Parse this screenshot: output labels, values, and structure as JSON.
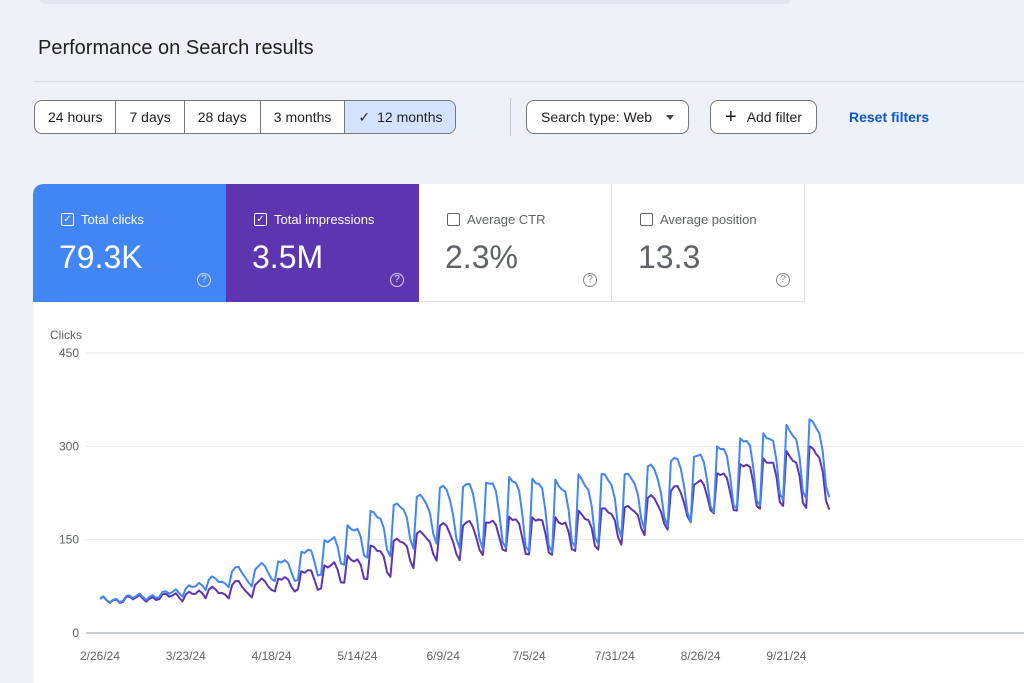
{
  "header": {
    "title": "Performance on Search results"
  },
  "date_range": {
    "options": [
      "24 hours",
      "7 days",
      "28 days",
      "3 months",
      "12 months"
    ],
    "selected": "12 months"
  },
  "filters": {
    "search_type_label": "Search type: Web",
    "add_filter_label": "Add filter",
    "reset_label": "Reset filters"
  },
  "metrics": {
    "clicks": {
      "label": "Total clicks",
      "value": "79.3K",
      "checked": true,
      "color": "#4285f4"
    },
    "impressions": {
      "label": "Total impressions",
      "value": "3.5M",
      "checked": true,
      "color": "#5e35b1"
    },
    "ctr": {
      "label": "Average CTR",
      "value": "2.3%",
      "checked": false
    },
    "position": {
      "label": "Average position",
      "value": "13.3",
      "checked": false
    }
  },
  "chart_data": {
    "type": "line",
    "ylabel": "Clicks",
    "yticks": [
      0,
      150,
      300,
      450
    ],
    "ylim": [
      0,
      450
    ],
    "xticks": [
      "2/26/24",
      "3/23/24",
      "4/18/24",
      "5/14/24",
      "6/9/24",
      "7/5/24",
      "7/31/24",
      "8/26/24",
      "9/21/24"
    ],
    "x_start": "2/26/24",
    "x_days": 221,
    "grid": true,
    "weekly_pattern": true,
    "series": [
      {
        "name": "Total clicks",
        "color": "#4285f4",
        "trend": [
          [
            0,
            52
          ],
          [
            20,
            62
          ],
          [
            40,
            100
          ],
          [
            60,
            125
          ],
          [
            80,
            185
          ],
          [
            100,
            230
          ],
          [
            120,
            250
          ],
          [
            140,
            245
          ],
          [
            160,
            258
          ],
          [
            180,
            290
          ],
          [
            200,
            320
          ],
          [
            221,
            345
          ]
        ],
        "dip": [
          0,
          0,
          25,
          45,
          65,
          85,
          120,
          115,
          95,
          110,
          115,
          120
        ]
      },
      {
        "name": "Total impressions",
        "color": "#5e35b1",
        "trend": [
          [
            0,
            52
          ],
          [
            20,
            58
          ],
          [
            40,
            78
          ],
          [
            60,
            95
          ],
          [
            80,
            130
          ],
          [
            100,
            170
          ],
          [
            120,
            185
          ],
          [
            140,
            185
          ],
          [
            160,
            205
          ],
          [
            180,
            245
          ],
          [
            200,
            280
          ],
          [
            221,
            300
          ]
        ],
        "dip": [
          0,
          0,
          22,
          30,
          45,
          55,
          60,
          60,
          55,
          65,
          80,
          95
        ]
      }
    ]
  }
}
